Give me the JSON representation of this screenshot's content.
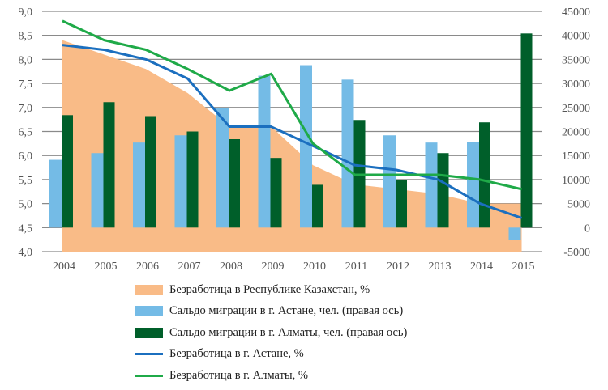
{
  "chart_data": {
    "type": "bar+line+area",
    "categories": [
      "2004",
      "2005",
      "2006",
      "2007",
      "2008",
      "2009",
      "2010",
      "2011",
      "2012",
      "2013",
      "2014",
      "2015"
    ],
    "left_axis": {
      "ylim": [
        4.0,
        9.0
      ],
      "ticks": [
        "4,0",
        "4,5",
        "5,0",
        "5,5",
        "6,0",
        "6,5",
        "7,0",
        "7,5",
        "8,0",
        "8,5",
        "9,0"
      ]
    },
    "right_axis": {
      "ylim": [
        -5000,
        45000
      ],
      "ticks": [
        "-5000",
        "0",
        "5000",
        "10000",
        "15000",
        "20000",
        "25000",
        "30000",
        "35000",
        "40000",
        "45000"
      ]
    },
    "grid": true,
    "legend_placement": "bottom",
    "series": [
      {
        "name": "Безработица в Республике Казахстан, %",
        "type": "area",
        "axis": "left",
        "color": "#f9bb87",
        "values": [
          8.4,
          8.1,
          7.8,
          7.3,
          6.6,
          6.6,
          5.8,
          5.4,
          5.3,
          5.2,
          5.0,
          5.0
        ]
      },
      {
        "name": "Сальдо миграции в г. Астане, чел. (правая ось)",
        "type": "bar",
        "axis": "right",
        "color": "#74bbe6",
        "values": [
          14100,
          15500,
          17700,
          19200,
          24900,
          31600,
          33800,
          30800,
          19200,
          17700,
          17800,
          -2500
        ]
      },
      {
        "name": "Сальдо миграции в г. Алматы, чел. (правая ось)",
        "type": "bar",
        "axis": "right",
        "color": "#005f2a",
        "values": [
          23400,
          26100,
          23200,
          20000,
          18400,
          14500,
          8900,
          22400,
          9900,
          15500,
          21900,
          40400
        ]
      },
      {
        "name": "Безработица в г. Астане, %",
        "type": "line",
        "axis": "left",
        "color": "#1b6fbf",
        "values": [
          8.3,
          8.2,
          8.0,
          7.6,
          6.6,
          6.6,
          6.2,
          5.8,
          5.7,
          5.5,
          5.0,
          4.7
        ]
      },
      {
        "name": "Безработица в г. Алматы, %",
        "type": "line",
        "axis": "left",
        "color": "#1faa48",
        "values": [
          8.8,
          8.4,
          8.2,
          7.8,
          7.35,
          7.7,
          6.25,
          5.6,
          5.6,
          5.6,
          5.5,
          5.3
        ]
      }
    ]
  }
}
